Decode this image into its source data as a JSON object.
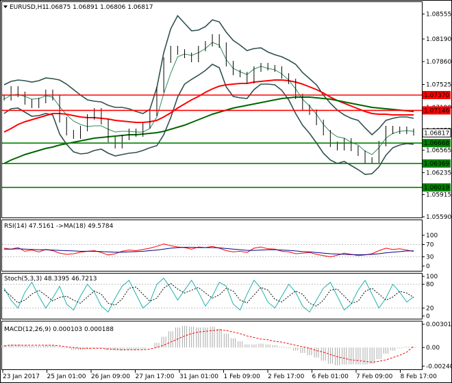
{
  "header": {
    "symbol_label": "EURUSD,H1",
    "ohlc": "1.06875 1.06891 1.06806 1.06817"
  },
  "colors": {
    "price_bars": "#000000",
    "bollinger": "#2f4f4f",
    "ma_fast": "#2e8b57",
    "ma_red": "#ff0000",
    "ma_green": "#006400",
    "level_red": "#ff0000",
    "level_green": "#008000",
    "rsi": "#ff0000",
    "rsi_ma": "#00008b",
    "stoch_main": "#20b2aa",
    "stoch_signal": "#000000",
    "macd_hist": "#a9a9a9",
    "macd_signal": "#ff0000"
  },
  "chart_data": [
    {
      "type": "line",
      "title": "EURUSD,H1 1.06875 1.06891 1.06806 1.06817",
      "x_tick_labels": [
        "23 Jan 2017",
        "25 Jan 01:00",
        "26 Jan 09:00",
        "27 Jan 17:00",
        "31 Jan 01:00",
        "1 Feb 09:00",
        "2 Feb 17:00",
        "6 Feb 01:00",
        "7 Feb 09:00",
        "8 Feb 17:00"
      ],
      "y_tick_labels": [
        "1.08555",
        "1.08190",
        "1.07860",
        "1.07525",
        "1.07190",
        "1.06855",
        "1.06565",
        "1.06235",
        "1.05915",
        "1.05590"
      ],
      "ylim": [
        1.0559,
        1.0872
      ],
      "current_price": 1.06817,
      "current_price_label": "1.06817",
      "levels": [
        {
          "value": 1.0737,
          "label": "1.07370",
          "color": "red"
        },
        {
          "value": 1.07146,
          "label": "1.07146",
          "color": "red"
        },
        {
          "value": 1.06668,
          "label": "1.06668",
          "color": "green"
        },
        {
          "value": 1.06369,
          "label": "1.06369",
          "color": "green"
        },
        {
          "value": 1.06019,
          "label": "1.06019",
          "color": "green"
        }
      ],
      "series": [
        {
          "key": "close",
          "values": [
            1.0733,
            1.0746,
            1.0738,
            1.0727,
            1.0722,
            1.0729,
            1.0741,
            1.0733,
            1.0701,
            1.0682,
            1.0677,
            1.0688,
            1.0705,
            1.0714,
            1.0698,
            1.0672,
            1.0663,
            1.0675,
            1.0684,
            1.068,
            1.0692,
            1.071,
            1.0745,
            1.0788,
            1.0805,
            1.08,
            1.0795,
            1.0789,
            1.0805,
            1.0812,
            1.0822,
            1.081,
            1.0783,
            1.077,
            1.0767,
            1.0758,
            1.0775,
            1.078,
            1.0777,
            1.0775,
            1.0765,
            1.0757,
            1.0735,
            1.0719,
            1.0712,
            1.0697,
            1.0682,
            1.0665,
            1.066,
            1.067,
            1.0659,
            1.0652,
            1.0641,
            1.0642,
            1.0666,
            1.0688,
            1.0684,
            1.0687,
            1.0684,
            1.06817
          ]
        },
        {
          "key": "bb_upper",
          "values": [
            1.0752,
            1.0757,
            1.0759,
            1.0758,
            1.0756,
            1.0758,
            1.0762,
            1.0761,
            1.0759,
            1.0753,
            1.0745,
            1.0737,
            1.073,
            1.0728,
            1.0727,
            1.0722,
            1.0719,
            1.0719,
            1.0717,
            1.0713,
            1.071,
            1.0716,
            1.0748,
            1.0799,
            1.0834,
            1.0853,
            1.0842,
            1.0831,
            1.0832,
            1.0837,
            1.0847,
            1.0844,
            1.0829,
            1.0817,
            1.081,
            1.0802,
            1.0805,
            1.0806,
            1.08,
            1.0796,
            1.0793,
            1.0788,
            1.0782,
            1.077,
            1.0761,
            1.0752,
            1.0737,
            1.0725,
            1.0715,
            1.0708,
            1.0703,
            1.07,
            1.0689,
            1.0679,
            1.0688,
            1.07,
            1.0703,
            1.0705,
            1.0705,
            1.0703
          ]
        },
        {
          "key": "bb_lower",
          "values": [
            1.071,
            1.0717,
            1.0718,
            1.0712,
            1.0706,
            1.0707,
            1.071,
            1.0708,
            1.068,
            1.0665,
            1.0654,
            1.0651,
            1.0652,
            1.0656,
            1.0658,
            1.0652,
            1.0648,
            1.065,
            1.0652,
            1.0653,
            1.0656,
            1.066,
            1.0663,
            1.0679,
            1.0704,
            1.0734,
            1.0753,
            1.076,
            1.0766,
            1.0773,
            1.0782,
            1.0777,
            1.0749,
            1.0735,
            1.0733,
            1.0732,
            1.0745,
            1.0753,
            1.0753,
            1.0752,
            1.0744,
            1.073,
            1.071,
            1.0693,
            1.0681,
            1.0667,
            1.0652,
            1.0642,
            1.0637,
            1.064,
            1.0634,
            1.0628,
            1.0621,
            1.0622,
            1.0632,
            1.0649,
            1.066,
            1.0664,
            1.0666,
            1.0665
          ]
        },
        {
          "key": "ma_fast",
          "values": [
            1.0731,
            1.0737,
            1.0738,
            1.0735,
            1.0731,
            1.0732,
            1.0736,
            1.0734,
            1.072,
            1.0708,
            1.0699,
            1.0694,
            1.0691,
            1.0692,
            1.0692,
            1.0687,
            1.0683,
            1.0684,
            1.0684,
            1.0683,
            1.0683,
            1.0688,
            1.0705,
            1.0739,
            1.0769,
            1.0793,
            1.0797,
            1.0795,
            1.0799,
            1.0805,
            1.0814,
            1.081,
            1.0789,
            1.0776,
            1.0771,
            1.0767,
            1.0775,
            1.0779,
            1.0776,
            1.0774,
            1.0768,
            1.0759,
            1.0746,
            1.0731,
            1.0721,
            1.0709,
            1.0694,
            1.0683,
            1.0676,
            1.0674,
            1.0668,
            1.0664,
            1.0655,
            1.065,
            1.066,
            1.0674,
            1.0681,
            1.0684,
            1.0685,
            1.0684
          ]
        },
        {
          "key": "ma_red",
          "values": [
            1.0683,
            1.0688,
            1.0694,
            1.0698,
            1.0701,
            1.0704,
            1.0707,
            1.071,
            1.071,
            1.0709,
            1.0707,
            1.0705,
            1.0704,
            1.0704,
            1.0703,
            1.0702,
            1.07,
            1.0699,
            1.0698,
            1.0697,
            1.0697,
            1.0698,
            1.07,
            1.0705,
            1.0711,
            1.0718,
            1.0724,
            1.073,
            1.0735,
            1.0741,
            1.0746,
            1.075,
            1.0752,
            1.0753,
            1.0754,
            1.0754,
            1.0756,
            1.0757,
            1.0758,
            1.0759,
            1.0759,
            1.0758,
            1.0756,
            1.0753,
            1.0749,
            1.0745,
            1.074,
            1.0734,
            1.0729,
            1.0725,
            1.0721,
            1.0717,
            1.0713,
            1.071,
            1.0709,
            1.0709,
            1.0708,
            1.0708,
            1.0708,
            1.0708
          ]
        },
        {
          "key": "ma_green",
          "values": [
            1.0637,
            1.0642,
            1.0646,
            1.065,
            1.0653,
            1.0656,
            1.0659,
            1.0661,
            1.0664,
            1.0666,
            1.0668,
            1.067,
            1.0672,
            1.0674,
            1.0675,
            1.0676,
            1.0677,
            1.0678,
            1.0679,
            1.0679,
            1.068,
            1.0681,
            1.0682,
            1.0684,
            1.0687,
            1.069,
            1.0693,
            1.0697,
            1.0701,
            1.0705,
            1.0709,
            1.0712,
            1.0715,
            1.0718,
            1.072,
            1.0722,
            1.0724,
            1.0726,
            1.0728,
            1.073,
            1.0732,
            1.0733,
            1.0734,
            1.0734,
            1.0734,
            1.0733,
            1.0732,
            1.0731,
            1.0729,
            1.0727,
            1.0725,
            1.0723,
            1.0721,
            1.0719,
            1.0718,
            1.0717,
            1.0716,
            1.0715,
            1.0714,
            1.0713
          ]
        }
      ]
    },
    {
      "type": "line",
      "title": "RSI(14) 47.5161 ->MA(18) 49.5784",
      "ylim": [
        0,
        100
      ],
      "y_tick_labels": [
        "100",
        "70",
        "30",
        "0"
      ],
      "series": [
        {
          "key": "rsi",
          "values": [
            58,
            55,
            60,
            48,
            52,
            46,
            54,
            50,
            42,
            38,
            40,
            45,
            48,
            50,
            44,
            36,
            40,
            48,
            52,
            50,
            54,
            58,
            64,
            72,
            66,
            62,
            60,
            55,
            62,
            60,
            64,
            58,
            50,
            46,
            48,
            44,
            58,
            62,
            56,
            55,
            48,
            46,
            40,
            42,
            44,
            38,
            34,
            30,
            35,
            42,
            38,
            34,
            36,
            40,
            50,
            58,
            54,
            56,
            52,
            47.5161
          ]
        },
        {
          "key": "rsi_ma",
          "values": [
            55,
            55,
            56,
            55,
            54,
            53,
            53,
            52,
            51,
            50,
            49,
            48,
            48,
            48,
            47,
            46,
            45,
            45,
            46,
            47,
            48,
            50,
            52,
            55,
            58,
            60,
            61,
            61,
            60,
            60,
            60,
            59,
            57,
            55,
            53,
            51,
            51,
            52,
            53,
            53,
            52,
            51,
            49,
            47,
            46,
            44,
            42,
            40,
            39,
            38,
            37,
            37,
            37,
            38,
            40,
            43,
            45,
            47,
            49,
            49.5784
          ]
        }
      ]
    },
    {
      "type": "line",
      "title": "Stoch(5,3,3) 48.3395 46.7213",
      "ylim": [
        0,
        100
      ],
      "y_tick_labels": [
        "100",
        "80",
        "20",
        "0"
      ],
      "series": [
        {
          "key": "main",
          "values": [
            70,
            40,
            20,
            60,
            85,
            50,
            20,
            45,
            75,
            30,
            15,
            50,
            80,
            60,
            25,
            10,
            45,
            75,
            90,
            55,
            20,
            35,
            80,
            95,
            70,
            40,
            65,
            90,
            60,
            25,
            50,
            85,
            75,
            30,
            15,
            55,
            90,
            70,
            35,
            20,
            50,
            80,
            60,
            25,
            10,
            40,
            70,
            85,
            50,
            15,
            30,
            65,
            90,
            55,
            20,
            45,
            80,
            60,
            35,
            48.3395
          ]
        },
        {
          "key": "signal",
          "values": [
            65,
            50,
            33,
            40,
            55,
            65,
            52,
            38,
            47,
            50,
            40,
            32,
            48,
            63,
            55,
            32,
            27,
            43,
            70,
            73,
            55,
            37,
            45,
            70,
            82,
            68,
            58,
            65,
            72,
            58,
            45,
            53,
            70,
            63,
            40,
            33,
            53,
            72,
            65,
            42,
            35,
            50,
            63,
            55,
            32,
            25,
            40,
            65,
            68,
            50,
            32,
            37,
            62,
            70,
            55,
            40,
            48,
            62,
            58,
            46.7213
          ]
        }
      ]
    },
    {
      "type": "bar",
      "title": "MACD(12,26,9) 0.000103 0.000188",
      "y_tick_labels": [
        "0.003016",
        "0.00",
        "-0.002409"
      ],
      "ylim": [
        -0.00265,
        0.0032
      ],
      "series": [
        {
          "key": "macd",
          "values": [
            0.0003,
            0.0004,
            0.0004,
            0.0003,
            0.0002,
            0.0002,
            0.0003,
            0.0003,
            0.0001,
            -0.0001,
            -0.0003,
            -0.0003,
            -0.0002,
            -0.0001,
            -0.0001,
            -0.0003,
            -0.0004,
            -0.0004,
            -0.0003,
            -0.0003,
            -0.0002,
            0.0,
            0.0006,
            0.0014,
            0.0021,
            0.0026,
            0.0028,
            0.0027,
            0.0026,
            0.0026,
            0.0027,
            0.0024,
            0.0018,
            0.0012,
            0.0008,
            0.0004,
            0.0004,
            0.0005,
            0.0004,
            0.0003,
            0.0001,
            -0.0001,
            -0.0004,
            -0.0007,
            -0.001,
            -0.0013,
            -0.0017,
            -0.0021,
            -0.0023,
            -0.0022,
            -0.0022,
            -0.0022,
            -0.0022,
            -0.0021,
            -0.0015,
            -0.0008,
            -0.0004,
            -0.0001,
            0.0001,
            0.000103
          ]
        },
        {
          "key": "signal",
          "values": [
            0.0002,
            0.0003,
            0.0003,
            0.0003,
            0.0003,
            0.0003,
            0.0003,
            0.0003,
            0.0002,
            0.0001,
            0.0,
            -0.0001,
            -0.0001,
            -0.0001,
            -0.0001,
            -0.0002,
            -0.0002,
            -0.0003,
            -0.0003,
            -0.0003,
            -0.0003,
            -0.0002,
            0.0,
            0.0003,
            0.0007,
            0.0011,
            0.0015,
            0.0018,
            0.002,
            0.0021,
            0.0022,
            0.0023,
            0.0022,
            0.002,
            0.0018,
            0.0015,
            0.0013,
            0.0011,
            0.001,
            0.0008,
            0.0007,
            0.0005,
            0.0003,
            0.0001,
            -0.0001,
            -0.0004,
            -0.0006,
            -0.0009,
            -0.0012,
            -0.0014,
            -0.0016,
            -0.0017,
            -0.0018,
            -0.0019,
            -0.0018,
            -0.0016,
            -0.0013,
            -0.001,
            -0.0006,
            0.000188
          ]
        }
      ]
    }
  ]
}
